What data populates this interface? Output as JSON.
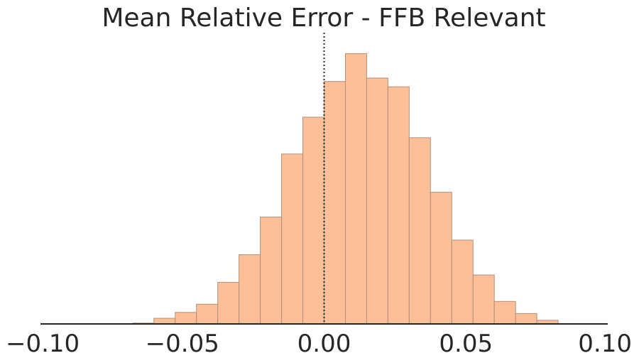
{
  "chart_data": {
    "type": "bar",
    "title": "Mean Relative Error - FFB Relevant",
    "xlabel": "",
    "ylabel": "",
    "xlim": [
      -0.1,
      0.1
    ],
    "ylim": [
      0,
      1.0
    ],
    "x_ticks": [
      "−0.10",
      "−0.05",
      "0.00",
      "0.05",
      "0.10"
    ],
    "x_tick_values": [
      -0.1,
      -0.05,
      0.0,
      0.05,
      0.1
    ],
    "reference_line": {
      "x": 0.0,
      "style": "dotted",
      "color": "#262626"
    },
    "bar_color": "#fdbf98",
    "bin_width": 0.0075,
    "bins": [
      {
        "x0": -0.0675,
        "count": 0.003
      },
      {
        "x0": -0.06,
        "count": 0.02
      },
      {
        "x0": -0.0525,
        "count": 0.041
      },
      {
        "x0": -0.045,
        "count": 0.07
      },
      {
        "x0": -0.0375,
        "count": 0.148
      },
      {
        "x0": -0.03,
        "count": 0.246
      },
      {
        "x0": -0.0225,
        "count": 0.38
      },
      {
        "x0": -0.015,
        "count": 0.604
      },
      {
        "x0": -0.0075,
        "count": 0.735
      },
      {
        "x0": 0.0,
        "count": 0.862
      },
      {
        "x0": 0.0075,
        "count": 0.961
      },
      {
        "x0": 0.015,
        "count": 0.874
      },
      {
        "x0": 0.0225,
        "count": 0.843
      },
      {
        "x0": 0.03,
        "count": 0.662
      },
      {
        "x0": 0.0375,
        "count": 0.468
      },
      {
        "x0": 0.045,
        "count": 0.298
      },
      {
        "x0": 0.0525,
        "count": 0.174
      },
      {
        "x0": 0.06,
        "count": 0.08
      },
      {
        "x0": 0.0675,
        "count": 0.037
      },
      {
        "x0": 0.075,
        "count": 0.013
      }
    ]
  }
}
